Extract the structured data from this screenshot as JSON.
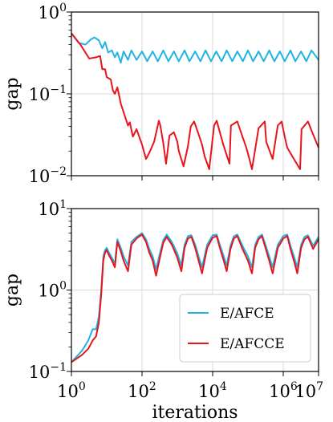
{
  "chart_data": [
    {
      "type": "line",
      "panel": "top",
      "xscale": "log",
      "yscale": "log",
      "xlim": [
        1,
        10000000
      ],
      "ylim": [
        0.01,
        1
      ],
      "xlabel": "",
      "ylabel": "gap",
      "grid": true,
      "x_ticks": [
        1,
        100,
        10000,
        1000000,
        10000000
      ],
      "y_ticks": [
        {
          "value": 0.01,
          "base": "10",
          "exp": "−2"
        },
        {
          "value": 0.1,
          "base": "10",
          "exp": "−1"
        },
        {
          "value": 1,
          "base": "10",
          "exp": "0"
        }
      ],
      "series": [
        {
          "name": "E/AFCE",
          "color": "#1fb4e2",
          "x": [
            1,
            1.6,
            2.5,
            3.5,
            4.5,
            6,
            7.5,
            9,
            11,
            14,
            17,
            20,
            25,
            30,
            40,
            50,
            70,
            100,
            140,
            200,
            280,
            400,
            560,
            800,
            1100,
            1600,
            2200,
            3200,
            4500,
            6300,
            9000,
            12600,
            18000,
            25000,
            36000,
            50000,
            72000,
            100000,
            140000,
            200000,
            280000,
            400000,
            560000,
            800000,
            1100000,
            1600000,
            2200000,
            3200000,
            4500000,
            6300000,
            10000000
          ],
          "y": [
            0.55,
            0.42,
            0.4,
            0.46,
            0.49,
            0.45,
            0.36,
            0.43,
            0.32,
            0.34,
            0.28,
            0.32,
            0.24,
            0.33,
            0.26,
            0.34,
            0.26,
            0.33,
            0.25,
            0.33,
            0.25,
            0.34,
            0.25,
            0.33,
            0.25,
            0.34,
            0.25,
            0.33,
            0.25,
            0.34,
            0.25,
            0.33,
            0.25,
            0.34,
            0.25,
            0.33,
            0.25,
            0.34,
            0.25,
            0.33,
            0.25,
            0.34,
            0.25,
            0.33,
            0.25,
            0.34,
            0.25,
            0.33,
            0.25,
            0.34,
            0.26
          ]
        },
        {
          "name": "E/AFCCE",
          "color": "#e8141c",
          "x": [
            1,
            1.8,
            3.2,
            5,
            6.5,
            7.5,
            9,
            10,
            13,
            15,
            17,
            20,
            22,
            25,
            30,
            40,
            45,
            55,
            70,
            100,
            130,
            160,
            220,
            300,
            330,
            400,
            480,
            600,
            800,
            1000,
            1100,
            1500,
            2000,
            2400,
            3000,
            4000,
            5000,
            6000,
            8000,
            11000,
            13000,
            20000,
            30000,
            33000,
            50000,
            70000,
            90000,
            110000,
            130000,
            200000,
            300000,
            330000,
            500000,
            700000,
            900000,
            1100000,
            1300000,
            2000000,
            3000000,
            3300000,
            5000000,
            7000000,
            10000000
          ],
          "y": [
            0.55,
            0.4,
            0.27,
            0.28,
            0.29,
            0.2,
            0.2,
            0.16,
            0.15,
            0.11,
            0.1,
            0.12,
            0.1,
            0.076,
            0.06,
            0.041,
            0.045,
            0.03,
            0.037,
            0.024,
            0.016,
            0.019,
            0.026,
            0.047,
            0.041,
            0.025,
            0.014,
            0.031,
            0.034,
            0.026,
            0.02,
            0.013,
            0.023,
            0.04,
            0.046,
            0.032,
            0.024,
            0.017,
            0.012,
            0.041,
            0.047,
            0.024,
            0.014,
            0.041,
            0.046,
            0.03,
            0.022,
            0.016,
            0.012,
            0.038,
            0.046,
            0.026,
            0.016,
            0.041,
            0.046,
            0.03,
            0.022,
            0.016,
            0.012,
            0.037,
            0.046,
            0.032,
            0.022
          ]
        }
      ]
    },
    {
      "type": "line",
      "panel": "bottom",
      "xscale": "log",
      "yscale": "log",
      "xlim": [
        1,
        10000000
      ],
      "ylim": [
        0.1,
        10
      ],
      "xlabel": "iterations",
      "ylabel": "gap",
      "grid": true,
      "x_ticks": [
        {
          "value": 1,
          "base": "10",
          "exp": "0"
        },
        {
          "value": 100,
          "base": "10",
          "exp": "2"
        },
        {
          "value": 10000,
          "base": "10",
          "exp": "4"
        },
        {
          "value": 1000000,
          "base": "10",
          "exp": "6"
        },
        {
          "value": 10000000,
          "base": "10",
          "exp": "7"
        }
      ],
      "y_ticks": [
        {
          "value": 0.1,
          "base": "10",
          "exp": "−1"
        },
        {
          "value": 1,
          "base": "10",
          "exp": "0"
        },
        {
          "value": 10,
          "base": "10",
          "exp": "1"
        }
      ],
      "legend": {
        "placement": "lower-right",
        "entries": [
          "E/AFCE",
          "E/AFCCE"
        ]
      },
      "series": [
        {
          "name": "E/AFCE",
          "color": "#1fb4e2",
          "x": [
            1,
            2,
            3,
            4,
            5,
            6,
            7,
            8,
            9,
            10,
            11,
            12,
            14,
            17,
            20,
            23,
            25,
            30,
            40,
            50,
            70,
            100,
            130,
            160,
            200,
            250,
            320,
            400,
            500,
            700,
            1000,
            1300,
            1600,
            2000,
            2500,
            3200,
            4000,
            5000,
            7000,
            10000,
            13000,
            16000,
            20000,
            25000,
            32000,
            40000,
            50000,
            70000,
            100000,
            130000,
            160000,
            200000,
            250000,
            320000,
            400000,
            500000,
            700000,
            1000000,
            1300000,
            1600000,
            2000000,
            2500000,
            3200000,
            4000000,
            5000000,
            7000000,
            10000000
          ],
          "y": [
            0.13,
            0.18,
            0.24,
            0.33,
            0.33,
            0.47,
            1.0,
            2.6,
            3.1,
            3.3,
            3.0,
            2.8,
            2.5,
            2.1,
            4.2,
            3.6,
            3.3,
            2.6,
            2.0,
            3.9,
            4.5,
            5.0,
            4.2,
            3.2,
            2.6,
            1.8,
            2.8,
            4.1,
            4.8,
            3.9,
            2.8,
            2.0,
            3.6,
            4.6,
            4.7,
            3.6,
            2.6,
            1.9,
            3.6,
            4.7,
            4.8,
            3.6,
            2.7,
            2.0,
            3.5,
            4.6,
            4.8,
            3.5,
            2.6,
            1.9,
            3.6,
            4.5,
            4.8,
            3.5,
            2.6,
            1.9,
            3.6,
            4.6,
            4.8,
            3.5,
            2.6,
            1.9,
            3.6,
            4.5,
            4.7,
            3.5,
            4.5
          ]
        },
        {
          "name": "E/AFCCE",
          "color": "#e8141c",
          "x": [
            1,
            2,
            3,
            4,
            5,
            6,
            7,
            8,
            9,
            10,
            11,
            12,
            14,
            17,
            20,
            23,
            25,
            30,
            40,
            50,
            70,
            100,
            130,
            160,
            200,
            250,
            320,
            400,
            500,
            700,
            1000,
            1300,
            1600,
            2000,
            2500,
            3200,
            4000,
            5000,
            7000,
            10000,
            13000,
            16000,
            20000,
            25000,
            32000,
            40000,
            50000,
            70000,
            100000,
            130000,
            160000,
            200000,
            250000,
            320000,
            400000,
            500000,
            700000,
            1000000,
            1300000,
            1600000,
            2000000,
            2500000,
            3200000,
            4000000,
            5000000,
            7000000,
            10000000
          ],
          "y": [
            0.13,
            0.16,
            0.19,
            0.24,
            0.27,
            0.4,
            0.9,
            2.3,
            2.9,
            3.1,
            2.8,
            2.6,
            2.3,
            1.9,
            3.9,
            3.3,
            3.0,
            2.3,
            1.7,
            3.6,
            4.3,
            4.8,
            3.9,
            2.9,
            2.3,
            1.5,
            2.5,
            3.8,
            4.5,
            3.6,
            2.5,
            1.7,
            3.3,
            4.3,
            4.5,
            3.3,
            2.3,
            1.6,
            3.3,
            4.4,
            4.6,
            3.3,
            2.4,
            1.7,
            3.2,
            4.3,
            4.6,
            3.2,
            2.3,
            1.6,
            3.3,
            4.2,
            4.6,
            3.2,
            2.3,
            1.6,
            3.3,
            4.3,
            4.6,
            3.2,
            2.3,
            1.6,
            3.3,
            4.2,
            4.5,
            3.2,
            4.2
          ]
        }
      ]
    }
  ]
}
